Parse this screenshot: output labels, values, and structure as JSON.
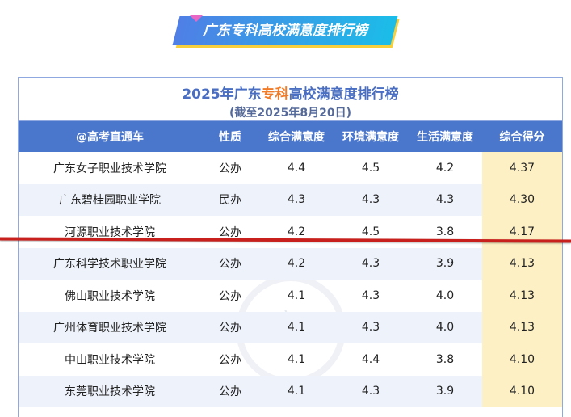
{
  "banner": {
    "title": "广东专科高校满意度排行榜"
  },
  "table": {
    "title_pre": "2025年广东",
    "title_hl": "专科",
    "title_post": "高校满意度排行榜",
    "subtitle": "(截至2025年8月20日)",
    "headers": [
      "@高考直通车",
      "性质",
      "综合满意度",
      "环境满意度",
      "生活满意度",
      "综合得分"
    ],
    "rows": [
      [
        "广东女子职业技术学院",
        "公办",
        "4.4",
        "4.5",
        "4.2",
        "4.37"
      ],
      [
        "广东碧桂园职业学院",
        "民办",
        "4.3",
        "4.3",
        "4.3",
        "4.30"
      ],
      [
        "河源职业技术学院",
        "公办",
        "4.2",
        "4.5",
        "3.8",
        "4.17"
      ],
      [
        "广东科学技术职业学院",
        "公办",
        "4.2",
        "4.3",
        "3.9",
        "4.13"
      ],
      [
        "佛山职业技术学院",
        "公办",
        "4.1",
        "4.3",
        "4.0",
        "4.13"
      ],
      [
        "广州体育职业技术学院",
        "公办",
        "4.1",
        "4.3",
        "4.0",
        "4.13"
      ],
      [
        "中山职业技术学院",
        "公办",
        "4.1",
        "4.4",
        "3.8",
        "4.10"
      ],
      [
        "东莞职业技术学院",
        "公办",
        "4.1",
        "4.3",
        "3.9",
        "4.10"
      ]
    ]
  },
  "watermark": "高",
  "colors": {
    "header": "#4a76cc",
    "highlight": "#f07c2a",
    "score_column": "#fdf0c4",
    "red_line": "#c8201c"
  }
}
